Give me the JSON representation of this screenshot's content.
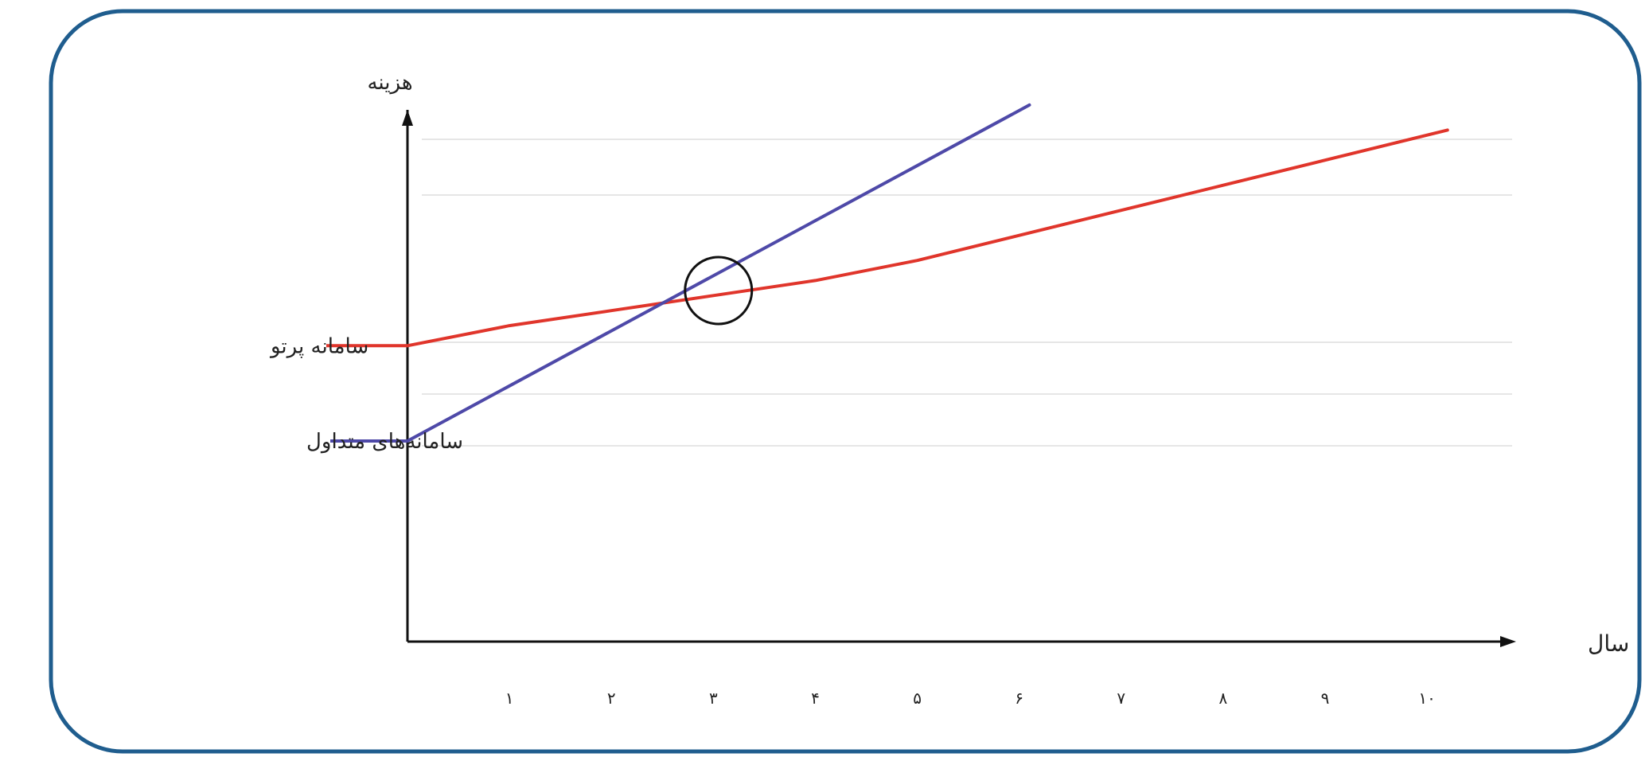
{
  "chart_data": {
    "type": "line",
    "ylabel": "هزینه",
    "xlabel": "سال",
    "categories": [
      "۱",
      "۲",
      "۳",
      "۴",
      "۵",
      "۶",
      "۷",
      "۸",
      "۹",
      "۱۰"
    ],
    "xlim": [
      0,
      10.6
    ],
    "ylim": [
      0,
      10
    ],
    "grid": true,
    "series": [
      {
        "name": "سامانه پرتو",
        "color": "#e0352b",
        "x": [
          0,
          1,
          2,
          3,
          4,
          5,
          6,
          7,
          8,
          9,
          10.2
        ],
        "y": [
          5.9,
          6.3,
          6.6,
          6.9,
          7.2,
          7.6,
          8.1,
          8.6,
          9.1,
          9.6,
          10.2
        ]
      },
      {
        "name": "سامانه‌های متداول",
        "color": "#4e49a8",
        "x": [
          0,
          6.1
        ],
        "y": [
          4.0,
          10.7
        ]
      }
    ],
    "annotation": {
      "type": "circle",
      "x": 3.05,
      "y": 7.0
    }
  },
  "colors": {
    "frame": "#1f5d8e",
    "axis": "#111111",
    "grid": "#e6e6e6"
  }
}
